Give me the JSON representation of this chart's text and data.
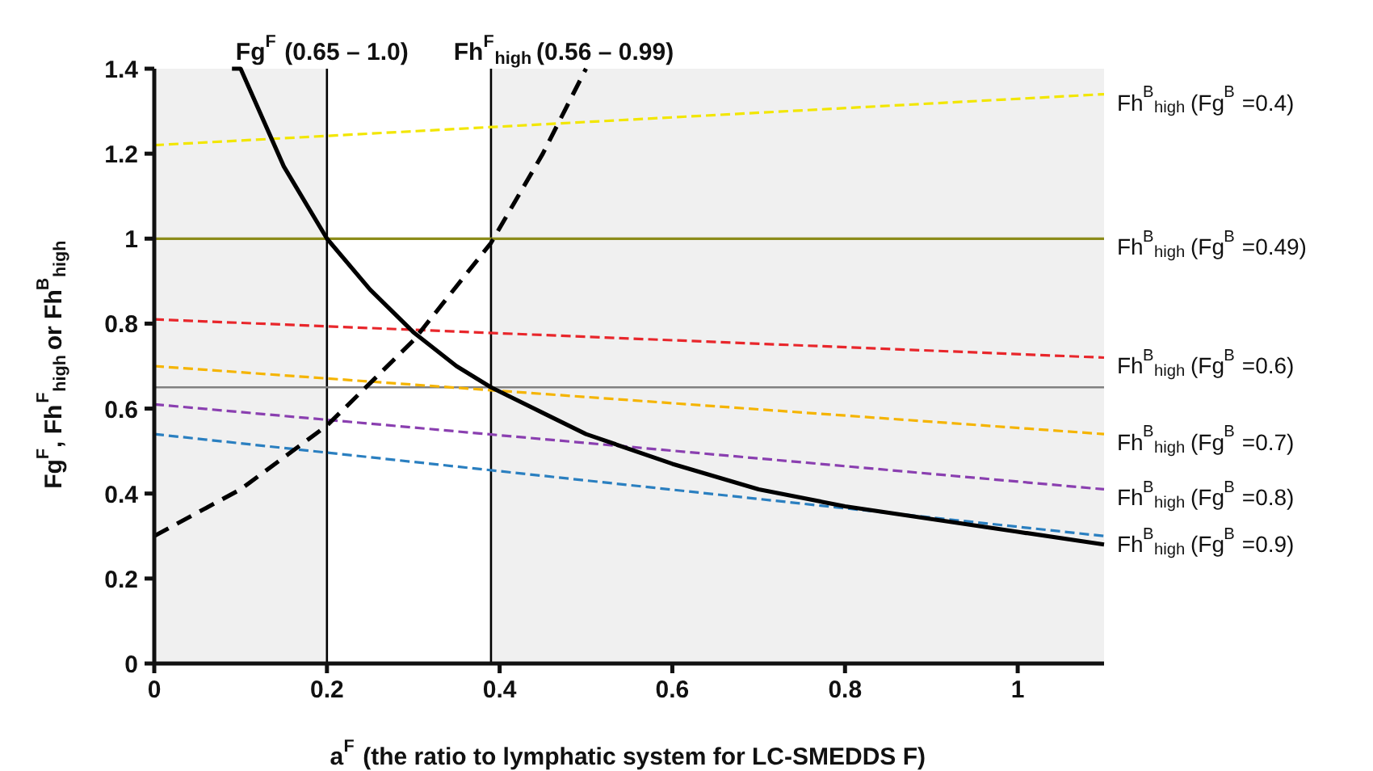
{
  "chart_data": {
    "type": "line",
    "xlabel": "a$^{F}$ (the ratio to lymphatic system for LC-SMEDDS F)",
    "ylabel": "Fg$^{F}$, Fh$^{F}$$_{high}$ or Fh$^{B}$$_{high}$",
    "xlim": [
      0,
      1.1
    ],
    "ylim": [
      0,
      1.4
    ],
    "xticks": [
      0,
      0.2,
      0.4,
      0.6,
      0.8,
      1
    ],
    "yticks": [
      0,
      0.2,
      0.4,
      0.6,
      0.8,
      1,
      1.2,
      1.4
    ],
    "bands": [
      {
        "axis": "x",
        "from": 0.2,
        "to": 0.39,
        "color": "#ffffff"
      }
    ],
    "ref_lines": [
      {
        "axis": "x",
        "value": 0.2,
        "label": "Fg$^{F}$ (0.65 – 1.0)",
        "color": "#000000"
      },
      {
        "axis": "x",
        "value": 0.39,
        "label": "Fh$^{F}$$_{high}$ (0.56 – 0.99)",
        "color": "#000000"
      },
      {
        "axis": "y",
        "value": 0.65,
        "color": "#808080"
      }
    ],
    "series": [
      {
        "name": "Fh$^{B}$$_{high}$ (Fg$^{B}$ =0.4)",
        "color": "#f2e600",
        "line_style": "dashed",
        "x": [
          0,
          1.1
        ],
        "values": [
          1.22,
          1.34
        ]
      },
      {
        "name": "Fh$^{B}$$_{high}$ (Fg$^{B}$ =0.49)",
        "color": "#8c8c1a",
        "line_style": "solid",
        "x": [
          0,
          1.1
        ],
        "values": [
          1.0,
          1.0
        ]
      },
      {
        "name": "Fh$^{B}$$_{high}$ (Fg$^{B}$ =0.6)",
        "color": "#e8262b",
        "line_style": "dashed",
        "x": [
          0,
          1.1
        ],
        "values": [
          0.81,
          0.72
        ]
      },
      {
        "name": "Fh$^{B}$$_{high}$ (Fg$^{B}$ =0.7)",
        "color": "#f5b400",
        "line_style": "dashed",
        "x": [
          0,
          1.1
        ],
        "values": [
          0.7,
          0.54
        ]
      },
      {
        "name": "Fh$^{B}$$_{high}$ (Fg$^{B}$ =0.8)",
        "color": "#8a3fb0",
        "line_style": "dashed",
        "x": [
          0,
          1.1
        ],
        "values": [
          0.61,
          0.41
        ]
      },
      {
        "name": "Fh$^{B}$$_{high}$ (Fg$^{B}$ =0.9)",
        "color": "#2a7fc0",
        "line_style": "dashed",
        "x": [
          0,
          1.1
        ],
        "values": [
          0.54,
          0.3
        ]
      },
      {
        "color": "#000000",
        "line_style": "solid",
        "x": [
          0.09,
          0.1,
          0.15,
          0.2,
          0.25,
          0.3,
          0.35,
          0.39,
          0.45,
          0.5,
          0.6,
          0.7,
          0.8,
          0.9,
          1.0,
          1.1
        ],
        "values": [
          1.4,
          1.4,
          1.17,
          1.0,
          0.88,
          0.78,
          0.7,
          0.65,
          0.59,
          0.54,
          0.47,
          0.41,
          0.37,
          0.34,
          0.31,
          0.28
        ]
      },
      {
        "color": "#000000",
        "line_style": "dashed",
        "x": [
          0,
          0.1,
          0.2,
          0.3,
          0.39,
          0.45,
          0.5
        ],
        "values": [
          0.3,
          0.41,
          0.56,
          0.76,
          0.99,
          1.2,
          1.4
        ]
      }
    ]
  }
}
